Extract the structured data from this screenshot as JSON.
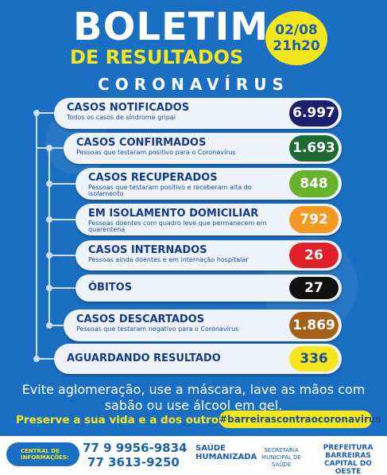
{
  "header": {
    "title": "BOLETIM",
    "subtitle": "DE RESULTADOS",
    "date": "02/08",
    "time": "21h20",
    "topic": "CORONAVÍRUS"
  },
  "items": [
    {
      "label": "CASOS NOTIFICADOS",
      "description": "Todos os casos de síndrome gripal",
      "value": "6.997",
      "color": "#1c1f6b"
    },
    {
      "label": "CASOS CONFIRMADOS",
      "description": "Pessoas que testaram positivo para o Coronavírus",
      "value": "1.693",
      "color": "#1e6a35"
    },
    {
      "label": "CASOS RECUPERADOS",
      "description": "Pessoas que testaram positivo e receberam alta do isolamento",
      "value": "848",
      "color": "#68b22d"
    },
    {
      "label": "EM ISOLAMENTO DOMICILIAR",
      "description": "Pessoas doentes com quadro leve que permanecem em quarentena",
      "value": "792",
      "color": "#f29a22"
    },
    {
      "label": "CASOS INTERNADOS",
      "description": "Pessoas ainda doentes e em internação hospitalar",
      "value": "26",
      "color": "#e2202a"
    },
    {
      "label": "ÓBITOS",
      "value": "27",
      "color": "#111111"
    },
    {
      "label": "CASOS DESCARTADOS",
      "description": "Pessoas que testaram negativo para o Coronavírus",
      "value": "1.869",
      "color": "#a5601a"
    },
    {
      "label": "AGUARDANDO RESULTADO",
      "value": "336",
      "color": "#f6e71c"
    }
  ],
  "message": "Evite aglomeração, use a máscara, lave as mãos com sabão ou use álcool em gel.",
  "slogan": "Preserve a sua vida e a dos outros!",
  "hashtag": "#barreirascontraocoronavirus",
  "footer": {
    "contact_label": "CENTRAL DE INFORMAÇÕES:",
    "phones": [
      "77 9 9956-9834",
      "77 3613-9250"
    ],
    "logos": [
      "SAÚDE HUMANIZADA",
      "SECRETARIA MUNICIPAL DE SAÚDE",
      "PREFEITURA BARREIRAS CAPITAL DO OESTE"
    ]
  }
}
